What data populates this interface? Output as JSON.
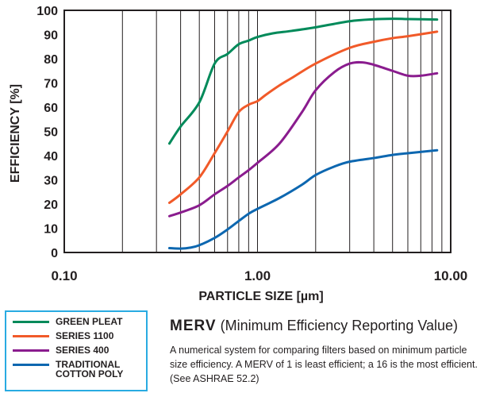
{
  "chart_data": {
    "type": "line",
    "xlabel": "PARTICLE SIZE [µm]",
    "ylabel": "EFFICIENCY [%]",
    "x_scale": "log",
    "xlim": [
      0.1,
      10
    ],
    "ylim": [
      0,
      100
    ],
    "x_ticks": [
      "0.10",
      "1.00",
      "10.00"
    ],
    "y_ticks": [
      "0",
      "10",
      "20",
      "30",
      "40",
      "50",
      "60",
      "70",
      "80",
      "90",
      "100"
    ],
    "grid": true,
    "legend_position": "bottom-left",
    "series": [
      {
        "name": "GREEN PLEAT",
        "color": "#008a5a",
        "x": [
          0.35,
          0.4,
          0.5,
          0.6,
          0.7,
          0.8,
          0.9,
          1.0,
          1.2,
          1.5,
          2.0,
          3.0,
          4.0,
          5.0,
          6.0,
          8.5
        ],
        "y": [
          45,
          52,
          62,
          78,
          82,
          86,
          87.5,
          89,
          90.5,
          91.5,
          93,
          95.5,
          96.3,
          96.5,
          96.4,
          96.2
        ]
      },
      {
        "name": "SERIES 1100",
        "color": "#f15a29",
        "x": [
          0.35,
          0.4,
          0.5,
          0.6,
          0.7,
          0.8,
          0.9,
          1.0,
          1.1,
          1.3,
          1.5,
          2.0,
          3.0,
          4.0,
          5.0,
          6.0,
          8.5
        ],
        "y": [
          20.5,
          24,
          31,
          41,
          50,
          58,
          61,
          62.5,
          65,
          69,
          72,
          78,
          84.5,
          87,
          88.5,
          89.3,
          91.2
        ]
      },
      {
        "name": "SERIES 400",
        "color": "#8a1c8e",
        "x": [
          0.35,
          0.4,
          0.5,
          0.6,
          0.7,
          0.8,
          0.9,
          1.0,
          1.3,
          1.7,
          2.0,
          2.5,
          3.0,
          3.5,
          4.0,
          5.0,
          6.0,
          7.0,
          8.5
        ],
        "y": [
          15,
          16.5,
          19.5,
          24,
          27.5,
          31,
          34,
          37,
          45,
          58,
          67,
          74.5,
          78,
          78.5,
          77.5,
          75,
          73,
          73,
          74
        ]
      },
      {
        "name": "TRADITIONAL COTTON POLY",
        "color": "#0d67b0",
        "x": [
          0.35,
          0.4,
          0.45,
          0.5,
          0.6,
          0.7,
          0.8,
          0.9,
          1.0,
          1.3,
          1.7,
          2.0,
          2.5,
          3.0,
          4.0,
          5.0,
          6.0,
          8.5
        ],
        "y": [
          1.8,
          1.6,
          2,
          3,
          6,
          9.5,
          13,
          16,
          18,
          22.5,
          28,
          32,
          35.5,
          37.5,
          39,
          40.3,
          41,
          42.2
        ]
      }
    ]
  },
  "legend": {
    "items": [
      {
        "label": "GREEN PLEAT",
        "color": "#008a5a"
      },
      {
        "label": "SERIES 1100",
        "color": "#f15a29"
      },
      {
        "label": "SERIES 400",
        "color": "#8a1c8e"
      },
      {
        "label": "TRADITIONAL COTTON POLY",
        "color": "#0d67b0"
      }
    ]
  },
  "merv": {
    "acronym": "MERV",
    "subtitle": "(Minimum Efficiency Reporting Value)",
    "description": "A numerical system for comparing filters based on minimum particle size efficiency. A MERV of 1 is least efficient; a 16 is the most efficient.(See ASHRAE 52.2)"
  }
}
